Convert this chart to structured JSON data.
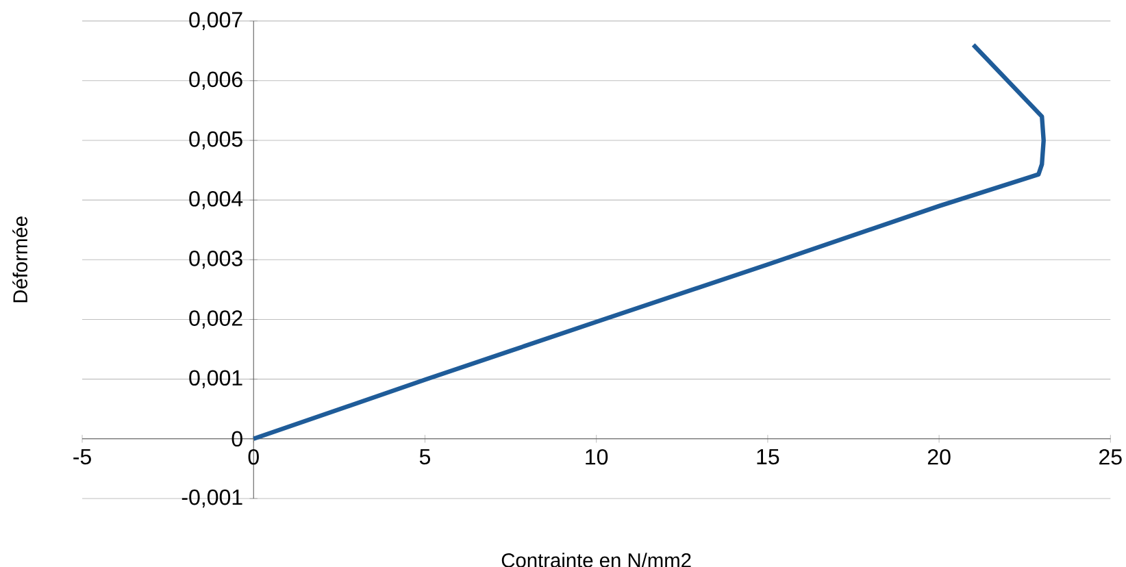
{
  "chart_data": {
    "type": "line",
    "xlabel": "Contrainte en N/mm2",
    "ylabel": "Déformée",
    "x": [
      0,
      5,
      10,
      15,
      20,
      22.9,
      23.0,
      23.05,
      23.0,
      21.0
    ],
    "series": [
      {
        "color": "#1f5c99",
        "values": [
          0,
          0.00099,
          0.00196,
          0.00292,
          0.0039,
          0.00443,
          0.0046,
          0.005,
          0.0054,
          0.0066
        ]
      }
    ],
    "xlim": [
      -5,
      25
    ],
    "ylim": [
      -0.001,
      0.007
    ],
    "xticks": [
      -5,
      0,
      5,
      10,
      15,
      20,
      25
    ],
    "yticks": [
      {
        "value": -0.001,
        "label": "-0,001"
      },
      {
        "value": 0,
        "label": "0"
      },
      {
        "value": 0.001,
        "label": "0,001"
      },
      {
        "value": 0.002,
        "label": "0,002"
      },
      {
        "value": 0.003,
        "label": "0,003"
      },
      {
        "value": 0.004,
        "label": "0,004"
      },
      {
        "value": 0.005,
        "label": "0,005"
      },
      {
        "value": 0.006,
        "label": "0,006"
      },
      {
        "value": 0.007,
        "label": "0,007"
      }
    ],
    "grid": "y",
    "marker": "none",
    "line_style": "solid"
  }
}
